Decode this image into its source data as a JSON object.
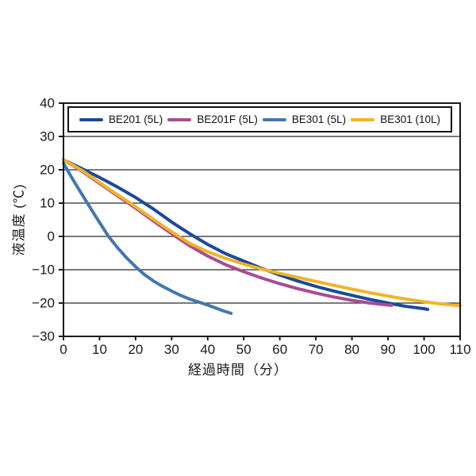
{
  "page": {
    "background": "#ffffff"
  },
  "chart_data": {
    "type": "line",
    "title": "",
    "xlabel": "経過時間（分）",
    "ylabel": "液温度 (℃)",
    "xlim": [
      0,
      110
    ],
    "ylim": [
      -30,
      40
    ],
    "x_ticks": [
      0,
      10,
      20,
      30,
      40,
      50,
      60,
      70,
      80,
      90,
      100,
      110
    ],
    "y_ticks": [
      40,
      30,
      20,
      10,
      0,
      -10,
      -20,
      -30
    ],
    "grid": "horizontal-only",
    "axis_color": "#1a1a1a",
    "grid_color": "#2b2b2b",
    "legend_position": "top-inside",
    "series": [
      {
        "label": "BE201 (5L)",
        "color": "#1b4a9a",
        "points": [
          [
            0,
            23
          ],
          [
            5,
            20.4
          ],
          [
            10,
            17.7
          ],
          [
            15,
            14.8
          ],
          [
            20,
            11.7
          ],
          [
            25,
            8.2
          ],
          [
            30,
            4.3
          ],
          [
            35,
            0.8
          ],
          [
            40,
            -2.4
          ],
          [
            45,
            -5.2
          ],
          [
            50,
            -7.4
          ],
          [
            55,
            -9.6
          ],
          [
            60,
            -11.6
          ],
          [
            65,
            -13.4
          ],
          [
            70,
            -15.0
          ],
          [
            75,
            -16.4
          ],
          [
            80,
            -17.7
          ],
          [
            85,
            -18.9
          ],
          [
            90,
            -20.0
          ],
          [
            95,
            -21.0
          ],
          [
            100,
            -21.7
          ],
          [
            101,
            -21.9
          ]
        ]
      },
      {
        "label": "BE201F (5L)",
        "color": "#aa4b93",
        "points": [
          [
            0,
            23
          ],
          [
            5,
            19.7
          ],
          [
            10,
            15.9
          ],
          [
            15,
            12.2
          ],
          [
            20,
            8.5
          ],
          [
            25,
            4.6
          ],
          [
            30,
            0.8
          ],
          [
            35,
            -2.8
          ],
          [
            40,
            -5.9
          ],
          [
            45,
            -8.5
          ],
          [
            50,
            -10.6
          ],
          [
            55,
            -12.5
          ],
          [
            60,
            -14.2
          ],
          [
            65,
            -15.7
          ],
          [
            70,
            -17.0
          ],
          [
            75,
            -18.2
          ],
          [
            80,
            -19.2
          ],
          [
            85,
            -20.0
          ],
          [
            90,
            -20.6
          ],
          [
            91,
            -20.7
          ]
        ]
      },
      {
        "label": "BE301 (5L)",
        "color": "#4577ae",
        "points": [
          [
            0,
            22
          ],
          [
            2,
            18.2
          ],
          [
            4,
            14.6
          ],
          [
            6,
            11.1
          ],
          [
            8,
            7.6
          ],
          [
            10,
            4.2
          ],
          [
            12.5,
            0
          ],
          [
            15,
            -3.4
          ],
          [
            17.5,
            -6.4
          ],
          [
            20,
            -9.1
          ],
          [
            22.5,
            -11.5
          ],
          [
            25,
            -13.4
          ],
          [
            27.5,
            -15.0
          ],
          [
            30,
            -16.4
          ],
          [
            32.5,
            -17.7
          ],
          [
            35,
            -18.8
          ],
          [
            37.5,
            -19.7
          ],
          [
            40,
            -20.6
          ],
          [
            42.5,
            -21.6
          ],
          [
            44.5,
            -22.4
          ],
          [
            46.5,
            -23.1
          ]
        ]
      },
      {
        "label": "BE301 (10L)",
        "color": "#f0b428",
        "points": [
          [
            0,
            23
          ],
          [
            5,
            19.9
          ],
          [
            10,
            16.2
          ],
          [
            15,
            12.5
          ],
          [
            20,
            8.9
          ],
          [
            25,
            5.1
          ],
          [
            30,
            1.4
          ],
          [
            35,
            -2.1
          ],
          [
            40,
            -4.6
          ],
          [
            45,
            -6.6
          ],
          [
            50,
            -8.3
          ],
          [
            55,
            -9.8
          ],
          [
            60,
            -11.1
          ],
          [
            65,
            -12.3
          ],
          [
            70,
            -13.5
          ],
          [
            75,
            -14.7
          ],
          [
            80,
            -15.8
          ],
          [
            85,
            -16.9
          ],
          [
            90,
            -17.9
          ],
          [
            95,
            -18.8
          ],
          [
            100,
            -19.6
          ],
          [
            105,
            -20.3
          ],
          [
            110,
            -20.8
          ]
        ]
      }
    ]
  }
}
